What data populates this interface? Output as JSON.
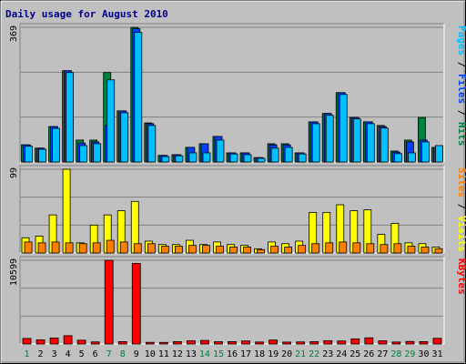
{
  "chart_data": {
    "type": "bar",
    "title": "Daily usage for August 2010",
    "colors": {
      "background": "#c0c0c0",
      "plot": "#c0c0c0",
      "hits": "#008040",
      "files": "#0040ff",
      "pages": "#00c0ff",
      "visits": "#ffff00",
      "sites": "#ff8000",
      "kbytes": "#ff0000",
      "title": "#00008b",
      "weekday": "#000000",
      "weekend": "#008040"
    },
    "days": [
      "1",
      "2",
      "3",
      "4",
      "5",
      "6",
      "7",
      "8",
      "9",
      "10",
      "11",
      "12",
      "13",
      "14",
      "15",
      "16",
      "17",
      "18",
      "19",
      "20",
      "21",
      "22",
      "23",
      "24",
      "25",
      "26",
      "27",
      "28",
      "29",
      "30",
      "31"
    ],
    "weekend_days": [
      "1",
      "7",
      "8",
      "14",
      "15",
      "21",
      "22",
      "28",
      "29"
    ],
    "panels": [
      {
        "id": "usage",
        "max_label": "369",
        "ylim": [
          0,
          369
        ],
        "legend": [
          {
            "text": "Pages",
            "color": "#00c0ff"
          },
          {
            "text": " / ",
            "color": "#000000"
          },
          {
            "text": "Files",
            "color": "#0040ff"
          },
          {
            "text": " / ",
            "color": "#000000"
          },
          {
            "text": "Hits",
            "color": "#008040"
          }
        ],
        "series": [
          {
            "name": "Hits",
            "color": "#008040",
            "values": [
              47,
              38,
              97,
              250,
              60,
              60,
              245,
              140,
              369,
              107,
              18,
              20,
              40,
              50,
              70,
              25,
              25,
              12,
              50,
              50,
              25,
              110,
              133,
              190,
              122,
              110,
              100,
              30,
              60,
              122,
              40
            ]
          },
          {
            "name": "Files",
            "color": "#0040ff",
            "values": [
              47,
              38,
              97,
              250,
              52,
              55,
              100,
              140,
              365,
              105,
              18,
              20,
              40,
              50,
              70,
              25,
              25,
              12,
              47,
              47,
              25,
              110,
              133,
              190,
              122,
              110,
              97,
              27,
              55,
              60,
              40
            ]
          },
          {
            "name": "Pages",
            "color": "#00c0ff",
            "values": [
              43,
              35,
              92,
              245,
              45,
              50,
              225,
              135,
              355,
              100,
              15,
              17,
              25,
              25,
              60,
              22,
              20,
              10,
              38,
              40,
              22,
              105,
              128,
              185,
              118,
              105,
              93,
              23,
              25,
              55,
              45
            ]
          }
        ]
      },
      {
        "id": "visits",
        "max_label": "99",
        "ylim": [
          0,
          99
        ],
        "legend": [
          {
            "text": "Sites",
            "color": "#ff8000"
          },
          {
            "text": " / ",
            "color": "#000000"
          },
          {
            "text": "Visits",
            "color": "#ffff00"
          }
        ],
        "series": [
          {
            "name": "Visits",
            "color": "#ffff00",
            "values": [
              18,
              20,
              45,
              99,
              12,
              33,
              45,
              50,
              61,
              14,
              10,
              10,
              15,
              10,
              13,
              10,
              9,
              5,
              13,
              11,
              14,
              48,
              48,
              57,
              50,
              51,
              22,
              35,
              12,
              11,
              7
            ]
          },
          {
            "name": "Sites",
            "color": "#ff8000",
            "values": [
              13,
              12,
              13,
              12,
              11,
              12,
              15,
              13,
              11,
              11,
              8,
              8,
              9,
              9,
              8,
              7,
              7,
              4,
              8,
              7,
              9,
              11,
              12,
              13,
              12,
              11,
              10,
              11,
              8,
              7,
              5
            ]
          }
        ]
      },
      {
        "id": "kbytes",
        "max_label": "10599",
        "ylim": [
          0,
          10599
        ],
        "legend": [
          {
            "text": "KBytes",
            "color": "#ff0000"
          }
        ],
        "series": [
          {
            "name": "KBytes",
            "color": "#ff0000",
            "values": [
              700,
              520,
              760,
              1050,
              480,
              260,
              10599,
              300,
              10200,
              210,
              200,
              300,
              400,
              450,
              280,
              300,
              380,
              250,
              500,
              240,
              260,
              290,
              420,
              380,
              650,
              780,
              400,
              250,
              320,
              300,
              720
            ]
          }
        ]
      }
    ]
  }
}
